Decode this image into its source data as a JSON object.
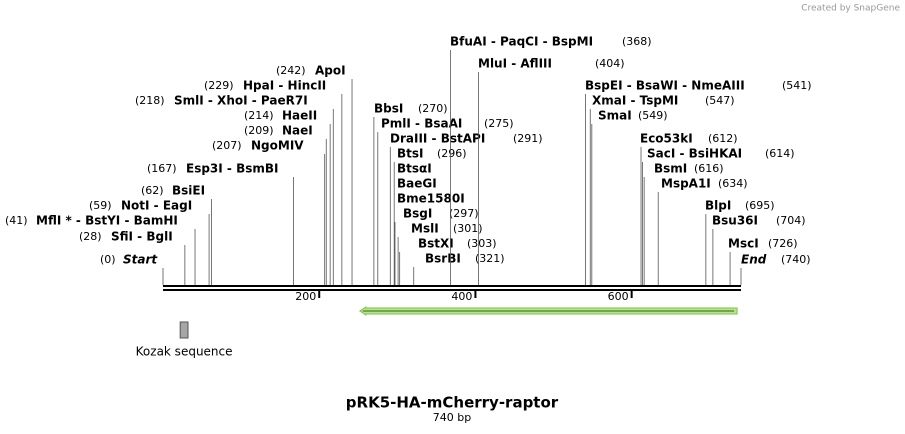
{
  "header": {
    "credit": "Created by SnapGene"
  },
  "map": {
    "title": "pRK5-HA-mCherry-raptor",
    "length": {
      "value": 740,
      "label": "740 bp"
    },
    "ticks": [
      200,
      400,
      600
    ],
    "sites": [
      {
        "label": "Start",
        "position": {
          "value": 0,
          "label": "(0)"
        }
      },
      {
        "label": "SfiI  - BglI",
        "position": {
          "value": 28,
          "label": "(28)"
        }
      },
      {
        "label": "MflI * - BstYI  - BamHI",
        "position": {
          "value": 41,
          "label": "(41)"
        }
      },
      {
        "label": "NotI  - EagI",
        "position": {
          "value": 59,
          "label": "(59)"
        }
      },
      {
        "label": "BsiEI",
        "position": {
          "value": 62,
          "label": "(62)"
        }
      },
      {
        "label": "Esp3I  - BsmBI",
        "position": {
          "value": 167,
          "label": "(167)"
        }
      },
      {
        "label": "NgoMIV",
        "position": {
          "value": 207,
          "label": "(207)"
        }
      },
      {
        "label": "NaeI",
        "position": {
          "value": 209,
          "label": "(209)"
        }
      },
      {
        "label": "HaeII",
        "position": {
          "value": 214,
          "label": "(214)"
        }
      },
      {
        "label": "SmlI  - XhoI  - PaeR7I",
        "position": {
          "value": 218,
          "label": "(218)"
        }
      },
      {
        "label": "HpaI  - HincII",
        "position": {
          "value": 229,
          "label": "(229)"
        }
      },
      {
        "label": "ApoI",
        "position": {
          "value": 242,
          "label": "(242)"
        }
      },
      {
        "label": "BbsI",
        "position": {
          "value": 270,
          "label": "(270)"
        }
      },
      {
        "label": "PmlI  - BsaAI",
        "position": {
          "value": 275,
          "label": "(275)"
        }
      },
      {
        "label": "DraIII  - BstAPI",
        "position": {
          "value": 291,
          "label": "(291)"
        }
      },
      {
        "label": "BtsI",
        "position": {
          "value": 296,
          "label": "(296)"
        }
      },
      {
        "label": "BtsαI"
      },
      {
        "label": "BaeGI"
      },
      {
        "label": "Bme1580I"
      },
      {
        "label": "BsgI",
        "position": {
          "value": 297,
          "label": "(297)"
        }
      },
      {
        "label": "MslI",
        "position": {
          "value": 301,
          "label": "(301)"
        }
      },
      {
        "label": "BstXI",
        "position": {
          "value": 303,
          "label": "(303)"
        }
      },
      {
        "label": "BsrBI",
        "position": {
          "value": 321,
          "label": "(321)"
        }
      },
      {
        "label": "BfuAI  - PaqCI  - BspMI",
        "position": {
          "value": 368,
          "label": "(368)"
        }
      },
      {
        "label": "MluI  - AflIII",
        "position": {
          "value": 404,
          "label": "(404)"
        }
      },
      {
        "label": "BspEI  - BsaWI  - NmeAIII",
        "position": {
          "value": 541,
          "label": "(541)"
        }
      },
      {
        "label": "XmaI  - TspMI",
        "position": {
          "value": 547,
          "label": "(547)"
        }
      },
      {
        "label": "SmaI",
        "position": {
          "value": 549,
          "label": "(549)"
        }
      },
      {
        "label": "Eco53kI",
        "position": {
          "value": 612,
          "label": "(612)"
        }
      },
      {
        "label": "SacI  - BsiHKAI",
        "position": {
          "value": 614,
          "label": "(614)"
        }
      },
      {
        "label": "BsmI",
        "position": {
          "value": 616,
          "label": "(616)"
        }
      },
      {
        "label": "MspA1I",
        "position": {
          "value": 634,
          "label": "(634)"
        }
      },
      {
        "label": "BlpI",
        "position": {
          "value": 695,
          "label": "(695)"
        }
      },
      {
        "label": "Bsu36I",
        "position": {
          "value": 704,
          "label": "(704)"
        }
      },
      {
        "label": "MscI",
        "position": {
          "value": 726,
          "label": "(726)"
        }
      },
      {
        "label": "End",
        "position": {
          "value": 740,
          "label": "(740)"
        }
      }
    ],
    "features": [
      {
        "label": "Kozak sequence",
        "start": 22,
        "end": 32,
        "color": "#a6a6a6"
      },
      {
        "start": 252,
        "end": 735,
        "direction": "reverse",
        "color": "#b5e68a"
      }
    ]
  }
}
